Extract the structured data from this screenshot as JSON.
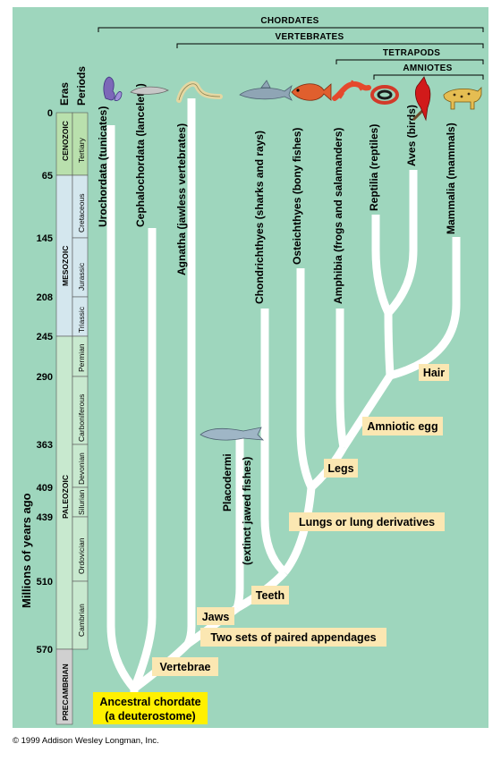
{
  "groups": {
    "chordates": "Chordates",
    "vertebrates": "Vertebrates",
    "tetrapods": "Tetrapods",
    "amniotes": "Amniotes"
  },
  "axis": {
    "label": "Millions of years ago",
    "eras_header": "Eras",
    "periods_header": "Periods",
    "ticks": [
      "0",
      "65",
      "145",
      "208",
      "245",
      "290",
      "363",
      "409",
      "439",
      "510",
      "570"
    ]
  },
  "eras": [
    {
      "name": "Cenozoic",
      "color": "#b9e0ad"
    },
    {
      "name": "Mesozoic",
      "color": "#d4e7ee"
    },
    {
      "name": "Paleozoic",
      "color": "#c8e9cf"
    },
    {
      "name": "Precambrian",
      "color": "#d0d0d0"
    }
  ],
  "periods": [
    "Tertiary",
    "Cretaceous",
    "Jurassic",
    "Triassic",
    "Permian",
    "Carboniferous",
    "Devonian",
    "Silurian",
    "Ordovician",
    "Cambrian"
  ],
  "taxa": [
    "Urochordata (tunicates)",
    "Cephalochordata (lancelets)",
    "Agnatha (jawless vertebrates)",
    "Chondrichthyes (sharks and rays)",
    "Osteichthyes (bony fishes)",
    "Amphibia (frogs and salamanders)",
    "Reptilia (reptiles)",
    "Aves (birds)",
    "Mammalia (mammals)"
  ],
  "extinct_taxon": {
    "name": "Placodermi",
    "note": "(extinct jawed fishes)"
  },
  "characters": [
    "Hair",
    "Amniotic egg",
    "Legs",
    "Lungs or lung derivatives",
    "Teeth",
    "Jaws",
    "Two sets of paired appendages",
    "Vertebrae"
  ],
  "root": {
    "line1": "Ancestral chordate",
    "line2": "(a deuterostome)"
  },
  "icons": [
    "tunicate-icon",
    "lancelet-icon",
    "lamprey-icon",
    "shark-icon",
    "bony-fish-icon",
    "salamander-icon",
    "snake-icon",
    "cardinal-bird-icon",
    "leopard-icon",
    "placoderm-fish-icon"
  ],
  "colors": {
    "background": "#9ed6bd",
    "branch": "#ffffff",
    "label_box": "#fbe7b2",
    "root_box": "#fff000"
  },
  "copyright": "© 1999 Addison Wesley Longman, Inc."
}
